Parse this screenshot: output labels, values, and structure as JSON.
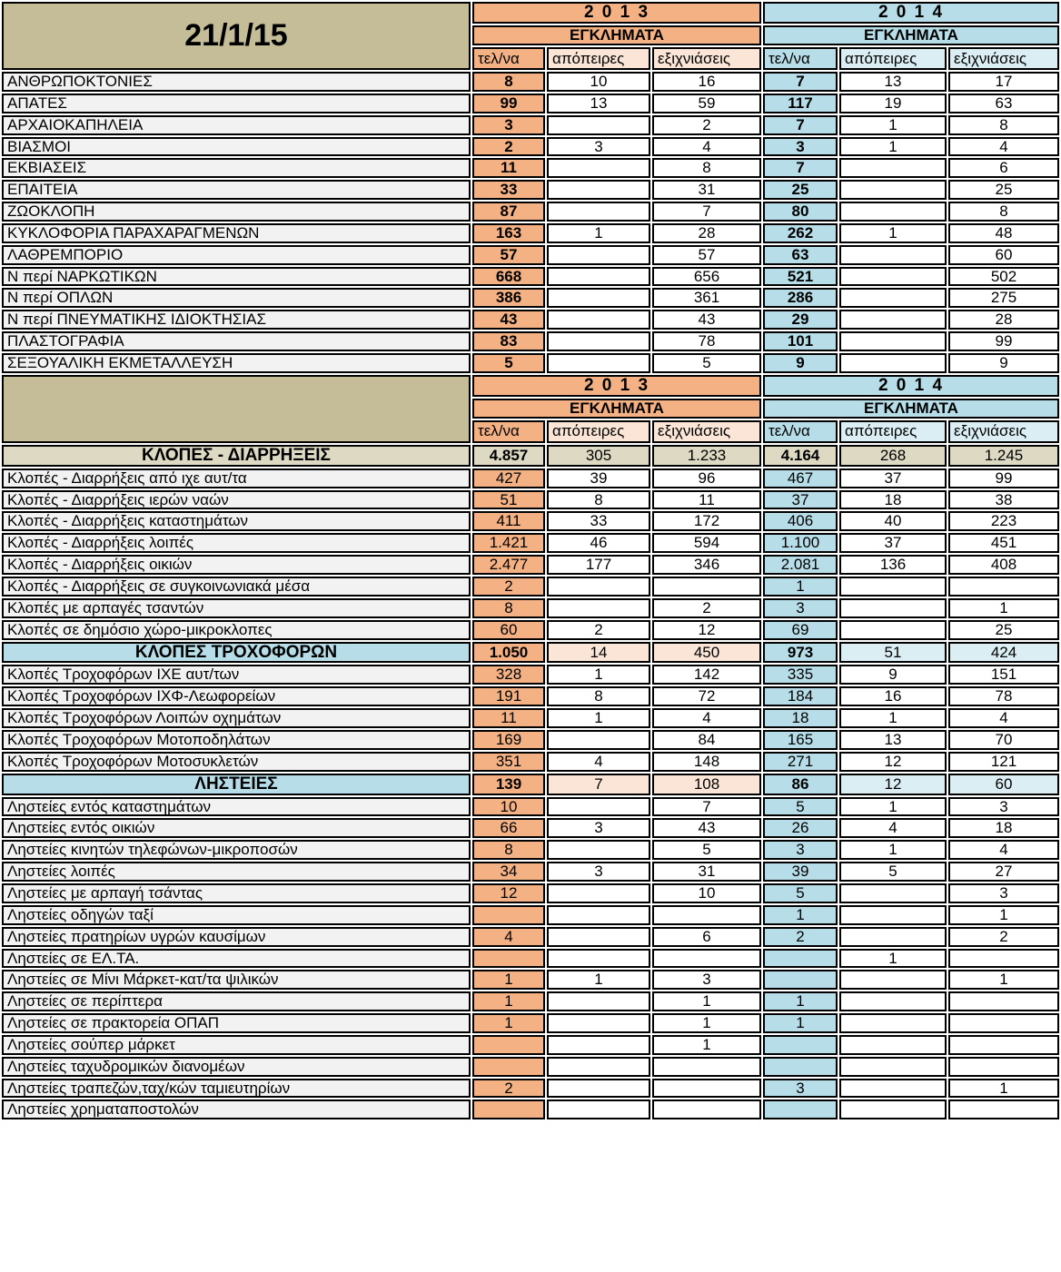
{
  "meta": {
    "date_label": "21/1/15"
  },
  "colors": {
    "orange": "#F4B183",
    "peach": "#FBE5D6",
    "blue": "#B7DEE8",
    "light_blue": "#DAEEF3",
    "khaki": "#C4BD97",
    "khaki_light": "#DDD9C3",
    "row_label_bg": "#F2F2F2",
    "grid": "#000000"
  },
  "header": {
    "year_2013": "2 0 1 3",
    "year_2014": "2 0 1 4",
    "crimes_label": "ΕΓΚΛΗΜΑΤΑ",
    "subcolumns": [
      "τελ/να",
      "απόπειρες",
      "εξιχνιάσεις"
    ]
  },
  "sections": [
    {
      "kind": "header",
      "left_label": "21/1/15"
    },
    {
      "kind": "rows",
      "bold_telna": true,
      "rows": [
        {
          "label": "ΑΝΘΡΩΠΟΚΤΟΝΙΕΣ",
          "values": [
            "8",
            "10",
            "16",
            "7",
            "13",
            "17"
          ]
        },
        {
          "label": "ΑΠΑΤΕΣ",
          "values": [
            "99",
            "13",
            "59",
            "117",
            "19",
            "63"
          ]
        },
        {
          "label": "ΑΡΧΑΙΟΚΑΠΗΛΕΙΑ",
          "values": [
            "3",
            "",
            "2",
            "7",
            "1",
            "8"
          ]
        },
        {
          "label": "ΒΙΑΣΜΟΙ",
          "values": [
            "2",
            "3",
            "4",
            "3",
            "1",
            "4"
          ]
        },
        {
          "label": "ΕΚΒΙΑΣΕΙΣ",
          "values": [
            "11",
            "",
            "8",
            "7",
            "",
            "6"
          ]
        },
        {
          "label": "ΕΠΑΙΤΕΙΑ",
          "values": [
            "33",
            "",
            "31",
            "25",
            "",
            "25"
          ]
        },
        {
          "label": "ΖΩΟΚΛΟΠΗ",
          "values": [
            "87",
            "",
            "7",
            "80",
            "",
            "8"
          ]
        },
        {
          "label": "ΚΥΚΛΟΦΟΡΙΑ ΠΑΡΑΧΑΡΑΓΜΕΝΩΝ",
          "values": [
            "163",
            "1",
            "28",
            "262",
            "1",
            "48"
          ]
        },
        {
          "label": "ΛΑΘΡΕΜΠΟΡΙΟ",
          "values": [
            "57",
            "",
            "57",
            "63",
            "",
            "60"
          ]
        },
        {
          "label": "Ν περί ΝΑΡΚΩΤΙΚΩΝ",
          "values": [
            "668",
            "",
            "656",
            "521",
            "",
            "502"
          ]
        },
        {
          "label": "Ν περί ΟΠΛΩΝ",
          "values": [
            "386",
            "",
            "361",
            "286",
            "",
            "275"
          ]
        },
        {
          "label": "Ν περί ΠΝΕΥΜΑΤΙΚΗΣ ΙΔΙΟΚΤΗΣΙΑΣ",
          "values": [
            "43",
            "",
            "43",
            "29",
            "",
            "28"
          ]
        },
        {
          "label": "ΠΛΑΣΤΟΓΡΑΦΙΑ",
          "values": [
            "83",
            "",
            "78",
            "101",
            "",
            "99"
          ]
        },
        {
          "label": "ΣΕΞΟΥΑΛΙΚΗ ΕΚΜΕΤΑΛΛΕΥΣΗ",
          "values": [
            "5",
            "",
            "5",
            "9",
            "",
            "9"
          ]
        }
      ]
    },
    {
      "kind": "header",
      "left_label": ""
    },
    {
      "kind": "group",
      "style": "khaki",
      "label": "ΚΛΟΠΕΣ - ΔΙΑΡΡΗΞΕΙΣ",
      "values": [
        "4.857",
        "305",
        "1.233",
        "4.164",
        "268",
        "1.245"
      ]
    },
    {
      "kind": "rows",
      "bold_telna": false,
      "rows": [
        {
          "label": "Κλοπές - Διαρρήξεις από ιχε αυτ/τα",
          "values": [
            "427",
            "39",
            "96",
            "467",
            "37",
            "99"
          ]
        },
        {
          "label": "Κλοπές - Διαρρήξεις ιερών ναών",
          "values": [
            "51",
            "8",
            "11",
            "37",
            "18",
            "38"
          ]
        },
        {
          "label": "Κλοπές - Διαρρήξεις καταστημάτων",
          "values": [
            "411",
            "33",
            "172",
            "406",
            "40",
            "223"
          ]
        },
        {
          "label": "Κλοπές - Διαρρήξεις λοιπές",
          "values": [
            "1.421",
            "46",
            "594",
            "1.100",
            "37",
            "451"
          ]
        },
        {
          "label": "Κλοπές - Διαρρήξεις οικιών",
          "values": [
            "2.477",
            "177",
            "346",
            "2.081",
            "136",
            "408"
          ]
        },
        {
          "label": "Κλοπές - Διαρρήξεις σε συγκοινωνιακά μέσα",
          "values": [
            "2",
            "",
            "",
            "1",
            "",
            ""
          ]
        },
        {
          "label": "Κλοπές με αρπαγές τσαντών",
          "values": [
            "8",
            "",
            "2",
            "3",
            "",
            "1"
          ]
        },
        {
          "label": "Κλοπές σε δημόσιο χώρο-μικροκλοπες",
          "values": [
            "60",
            "2",
            "12",
            "69",
            "",
            "25"
          ]
        }
      ]
    },
    {
      "kind": "group",
      "style": "blue",
      "label": "ΚΛΟΠΕΣ ΤΡΟΧΟΦΟΡΩΝ",
      "values": [
        "1.050",
        "14",
        "450",
        "973",
        "51",
        "424"
      ]
    },
    {
      "kind": "rows",
      "bold_telna": false,
      "rows": [
        {
          "label": "Κλοπές Τροχοφόρων ΙΧΕ αυτ/των",
          "values": [
            "328",
            "1",
            "142",
            "335",
            "9",
            "151"
          ]
        },
        {
          "label": "Κλοπές Τροχοφόρων ΙΧΦ-Λεωφορείων",
          "values": [
            "191",
            "8",
            "72",
            "184",
            "16",
            "78"
          ]
        },
        {
          "label": "Κλοπές Τροχοφόρων Λοιπών οχημάτων",
          "values": [
            "11",
            "1",
            "4",
            "18",
            "1",
            "4"
          ]
        },
        {
          "label": "Κλοπές Τροχοφόρων Μοτοποδηλάτων",
          "values": [
            "169",
            "",
            "84",
            "165",
            "13",
            "70"
          ]
        },
        {
          "label": "Κλοπές Τροχοφόρων Μοτοσυκλετών",
          "values": [
            "351",
            "4",
            "148",
            "271",
            "12",
            "121"
          ]
        }
      ]
    },
    {
      "kind": "group",
      "style": "blue",
      "label": "ΛΗΣΤΕΙΕΣ",
      "values": [
        "139",
        "7",
        "108",
        "86",
        "12",
        "60"
      ]
    },
    {
      "kind": "rows",
      "bold_telna": false,
      "rows": [
        {
          "label": "Ληστείες εντός καταστημάτων",
          "values": [
            "10",
            "",
            "7",
            "5",
            "1",
            "3"
          ]
        },
        {
          "label": "Ληστείες εντός οικιών",
          "values": [
            "66",
            "3",
            "43",
            "26",
            "4",
            "18"
          ]
        },
        {
          "label": "Ληστείες κινητών τηλεφώνων-μικροποσών",
          "values": [
            "8",
            "",
            "5",
            "3",
            "1",
            "4"
          ]
        },
        {
          "label": "Ληστείες λοιπές",
          "values": [
            "34",
            "3",
            "31",
            "39",
            "5",
            "27"
          ]
        },
        {
          "label": "Ληστείες με αρπαγή τσάντας",
          "values": [
            "12",
            "",
            "10",
            "5",
            "",
            "3"
          ]
        },
        {
          "label": "Ληστείες οδηγών ταξί",
          "values": [
            "",
            "",
            "",
            "1",
            "",
            "1"
          ]
        },
        {
          "label": "Ληστείες πρατηρίων υγρών καυσίμων",
          "values": [
            "4",
            "",
            "6",
            "2",
            "",
            "2"
          ]
        },
        {
          "label": "Ληστείες σε ΕΛ.ΤΑ.",
          "values": [
            "",
            "",
            "",
            "",
            "1",
            ""
          ]
        },
        {
          "label": "Ληστείες σε Μίνι Μάρκετ-κατ/τα ψιλικών",
          "values": [
            "1",
            "1",
            "3",
            "",
            "",
            "1"
          ]
        },
        {
          "label": "Ληστείες σε περίπτερα",
          "values": [
            "1",
            "",
            "1",
            "1",
            "",
            ""
          ]
        },
        {
          "label": "Ληστείες σε πρακτορεία ΟΠΑΠ",
          "values": [
            "1",
            "",
            "1",
            "1",
            "",
            ""
          ]
        },
        {
          "label": "Ληστείες σούπερ μάρκετ",
          "values": [
            "",
            "",
            "1",
            "",
            "",
            ""
          ]
        },
        {
          "label": "Ληστείες ταχυδρομικών διανομέων",
          "values": [
            "",
            "",
            "",
            "",
            "",
            ""
          ]
        },
        {
          "label": "Ληστείες τραπεζών,ταχ/κών ταμιευτηρίων",
          "values": [
            "2",
            "",
            "",
            "3",
            "",
            "1"
          ]
        },
        {
          "label": "Ληστείες χρηματαποστολών",
          "values": [
            "",
            "",
            "",
            "",
            "",
            ""
          ]
        }
      ]
    }
  ]
}
